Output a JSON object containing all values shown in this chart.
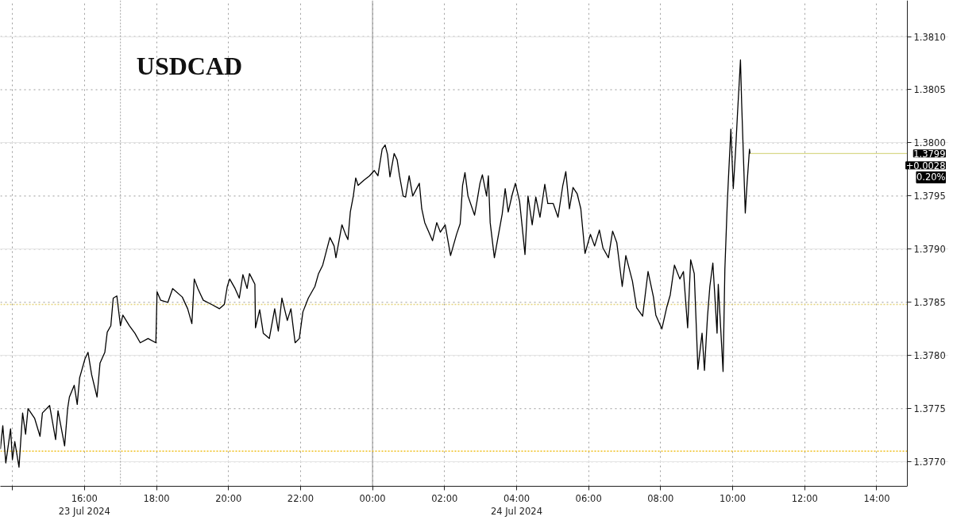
{
  "chart_data": {
    "type": "line",
    "title": "USDCAD",
    "x": [
      "2024-07-23T13:40",
      "2024-07-23T13:44",
      "2024-07-23T13:49",
      "2024-07-23T13:57",
      "2024-07-23T14:00",
      "2024-07-23T14:04",
      "2024-07-23T14:11",
      "2024-07-23T14:17",
      "2024-07-23T14:22",
      "2024-07-23T14:26",
      "2024-07-23T14:37",
      "2024-07-23T14:46",
      "2024-07-23T14:50",
      "2024-07-23T15:02",
      "2024-07-23T15:12",
      "2024-07-23T15:16",
      "2024-07-23T15:27",
      "2024-07-23T15:32",
      "2024-07-23T15:35",
      "2024-07-23T15:43",
      "2024-07-23T15:48",
      "2024-07-23T15:52",
      "2024-07-23T16:01",
      "2024-07-23T16:06",
      "2024-07-23T16:12",
      "2024-07-23T16:21",
      "2024-07-23T16:26",
      "2024-07-23T16:34",
      "2024-07-23T16:38",
      "2024-07-23T16:44",
      "2024-07-23T16:48",
      "2024-07-23T16:54",
      "2024-07-23T17:00",
      "2024-07-23T17:04",
      "2024-07-23T17:15",
      "2024-07-23T17:24",
      "2024-07-23T17:33",
      "2024-07-23T17:46",
      "2024-07-23T17:59",
      "2024-07-23T18:01",
      "2024-07-23T18:07",
      "2024-07-23T18:19",
      "2024-07-23T18:27",
      "2024-07-23T18:43",
      "2024-07-23T18:52",
      "2024-07-23T18:59",
      "2024-07-23T19:03",
      "2024-07-23T19:09",
      "2024-07-23T19:18",
      "2024-07-23T19:32",
      "2024-07-23T19:45",
      "2024-07-23T19:53",
      "2024-07-23T19:58",
      "2024-07-23T20:02",
      "2024-07-23T20:11",
      "2024-07-23T20:18",
      "2024-07-23T20:24",
      "2024-07-23T20:31",
      "2024-07-23T20:35",
      "2024-07-23T20:44",
      "2024-07-23T20:45",
      "2024-07-23T20:52",
      "2024-07-23T20:58",
      "2024-07-23T21:08",
      "2024-07-23T21:17",
      "2024-07-23T21:23",
      "2024-07-23T21:29",
      "2024-07-23T21:38",
      "2024-07-23T21:44",
      "2024-07-23T21:51",
      "2024-07-23T21:58",
      "2024-07-23T22:04",
      "2024-07-23T22:13",
      "2024-07-23T22:24",
      "2024-07-23T22:30",
      "2024-07-23T22:37",
      "2024-07-23T22:49",
      "2024-07-23T22:56",
      "2024-07-23T22:59",
      "2024-07-23T23:09",
      "2024-07-23T23:15",
      "2024-07-23T23:19",
      "2024-07-23T23:23",
      "2024-07-23T23:28",
      "2024-07-23T23:32",
      "2024-07-23T23:36",
      "2024-07-23T23:46",
      "2024-07-23T23:55",
      "2024-07-24T00:03",
      "2024-07-24T00:09",
      "2024-07-24T00:16",
      "2024-07-24T00:21",
      "2024-07-24T00:25",
      "2024-07-24T00:29",
      "2024-07-24T00:36",
      "2024-07-24T00:41",
      "2024-07-24T00:45",
      "2024-07-24T00:51",
      "2024-07-24T00:55",
      "2024-07-24T01:01",
      "2024-07-24T01:07",
      "2024-07-24T01:18",
      "2024-07-24T01:22",
      "2024-07-24T01:27",
      "2024-07-24T01:40",
      "2024-07-24T01:47",
      "2024-07-24T01:53",
      "2024-07-24T02:01",
      "2024-07-24T02:10",
      "2024-07-24T02:20",
      "2024-07-24T02:26",
      "2024-07-24T02:30",
      "2024-07-24T02:34",
      "2024-07-24T02:39",
      "2024-07-24T02:50",
      "2024-07-24T02:54",
      "2024-07-24T02:59",
      "2024-07-24T03:03",
      "2024-07-24T03:10",
      "2024-07-24T03:13",
      "2024-07-24T03:16",
      "2024-07-24T03:23",
      "2024-07-24T03:29",
      "2024-07-24T03:36",
      "2024-07-24T03:41",
      "2024-07-24T03:46",
      "2024-07-24T03:53",
      "2024-07-24T03:58",
      "2024-07-24T04:05",
      "2024-07-24T04:09",
      "2024-07-24T04:14",
      "2024-07-24T04:19",
      "2024-07-24T04:26",
      "2024-07-24T04:32",
      "2024-07-24T04:39",
      "2024-07-24T04:47",
      "2024-07-24T04:52",
      "2024-07-24T05:01",
      "2024-07-24T05:09",
      "2024-07-24T05:17",
      "2024-07-24T05:22",
      "2024-07-24T05:28",
      "2024-07-24T05:34",
      "2024-07-24T05:41",
      "2024-07-24T05:47",
      "2024-07-24T05:54",
      "2024-07-24T06:03",
      "2024-07-24T06:10",
      "2024-07-24T06:18",
      "2024-07-24T06:24",
      "2024-07-24T06:33",
      "2024-07-24T06:40",
      "2024-07-24T06:47",
      "2024-07-24T06:56",
      "2024-07-24T07:02",
      "2024-07-24T07:13",
      "2024-07-24T07:20",
      "2024-07-24T07:30",
      "2024-07-24T07:39",
      "2024-07-24T07:48",
      "2024-07-24T07:52",
      "2024-07-24T08:02",
      "2024-07-24T08:10",
      "2024-07-24T08:16",
      "2024-07-24T08:23",
      "2024-07-24T08:32",
      "2024-07-24T08:38",
      "2024-07-24T08:45",
      "2024-07-24T08:50",
      "2024-07-24T08:56",
      "2024-07-24T09:01",
      "2024-07-24T09:02",
      "2024-07-24T09:09",
      "2024-07-24T09:13",
      "2024-07-24T09:18",
      "2024-07-24T09:22",
      "2024-07-24T09:27",
      "2024-07-24T09:34",
      "2024-07-24T09:36",
      "2024-07-24T09:44",
      "2024-07-24T09:47",
      "2024-07-24T09:51",
      "2024-07-24T09:53",
      "2024-07-24T09:57",
      "2024-07-24T10:01",
      "2024-07-24T10:05",
      "2024-07-24T10:08",
      "2024-07-24T10:13",
      "2024-07-24T10:15",
      "2024-07-24T10:17",
      "2024-07-24T10:21",
      "2024-07-24T10:24",
      "2024-07-24T10:28",
      "2024-07-24T10:29"
    ],
    "series": [
      {
        "color": "#000000",
        "values": [
          1.37712,
          1.37734,
          1.37699,
          1.37731,
          1.37702,
          1.37719,
          1.37695,
          1.37746,
          1.37726,
          1.3775,
          1.37741,
          1.37724,
          1.37746,
          1.37753,
          1.37721,
          1.37748,
          1.37715,
          1.3775,
          1.37761,
          1.37772,
          1.37754,
          1.37779,
          1.37797,
          1.37803,
          1.37782,
          1.37761,
          1.37793,
          1.37803,
          1.37822,
          1.37828,
          1.37854,
          1.37856,
          1.37828,
          1.37838,
          1.37828,
          1.37821,
          1.37812,
          1.37816,
          1.37812,
          1.3786,
          1.37852,
          1.3785,
          1.37863,
          1.37855,
          1.37844,
          1.3783,
          1.37872,
          1.37863,
          1.37852,
          1.37848,
          1.37844,
          1.37848,
          1.37865,
          1.37872,
          1.37863,
          1.37854,
          1.37876,
          1.37863,
          1.37877,
          1.37867,
          1.37826,
          1.37843,
          1.37821,
          1.37816,
          1.37844,
          1.37823,
          1.37854,
          1.37833,
          1.37844,
          1.37812,
          1.37816,
          1.37841,
          1.37854,
          1.37865,
          1.37877,
          1.37885,
          1.37911,
          1.37903,
          1.37892,
          1.37923,
          1.37914,
          1.37909,
          1.37935,
          1.3795,
          1.37967,
          1.3796,
          1.37965,
          1.37969,
          1.37974,
          1.37969,
          1.37994,
          1.37998,
          1.37989,
          1.37968,
          1.3799,
          1.37984,
          1.37969,
          1.3795,
          1.37949,
          1.37969,
          1.3795,
          1.37962,
          1.37938,
          1.37925,
          1.37908,
          1.37925,
          1.37916,
          1.37923,
          1.37894,
          1.37914,
          1.37924,
          1.3796,
          1.37972,
          1.3795,
          1.37932,
          1.37945,
          1.37962,
          1.3797,
          1.3795,
          1.37969,
          1.37925,
          1.37892,
          1.37911,
          1.37933,
          1.37957,
          1.37935,
          1.37952,
          1.37962,
          1.37945,
          1.37923,
          1.37895,
          1.3795,
          1.37923,
          1.37949,
          1.3793,
          1.37961,
          1.37943,
          1.37943,
          1.3793,
          1.3796,
          1.37973,
          1.37938,
          1.37958,
          1.37952,
          1.37938,
          1.37896,
          1.37914,
          1.37903,
          1.37918,
          1.37901,
          1.37892,
          1.37917,
          1.37906,
          1.37865,
          1.37894,
          1.3787,
          1.37845,
          1.37837,
          1.37879,
          1.37855,
          1.37838,
          1.37825,
          1.37845,
          1.37857,
          1.37885,
          1.37872,
          1.37879,
          1.37826,
          1.3789,
          1.37877,
          1.37804,
          1.37787,
          1.37821,
          1.37786,
          1.37836,
          1.37865,
          1.37887,
          1.37821,
          1.37867,
          1.37785,
          1.37881,
          1.37943,
          1.37967,
          1.38013,
          1.37957,
          1.37994,
          1.38027,
          1.38078,
          1.38037,
          1.38003,
          1.37934,
          1.37962,
          1.37994,
          1.3799
        ]
      }
    ],
    "xlim": [
      "2024-07-23T13:40",
      "2024-07-24T14:51"
    ],
    "ylim": [
      1.37677,
      1.38134
    ],
    "xticks": [
      {
        "value": "2024-07-23T14:00",
        "label": null
      },
      {
        "value": "2024-07-23T16:00",
        "label": "16:00\n23 Jul 2024"
      },
      {
        "value": "2024-07-23T18:00",
        "label": "18:00"
      },
      {
        "value": "2024-07-23T20:00",
        "label": "20:00"
      },
      {
        "value": "2024-07-23T22:00",
        "label": "22:00"
      },
      {
        "value": "2024-07-24T00:00",
        "label": "00:00"
      },
      {
        "value": "2024-07-24T02:00",
        "label": "02:00"
      },
      {
        "value": "2024-07-24T04:00",
        "label": "04:00\n24 Jul 2024"
      },
      {
        "value": "2024-07-24T06:00",
        "label": "06:00"
      },
      {
        "value": "2024-07-24T08:00",
        "label": "08:00"
      },
      {
        "value": "2024-07-24T10:00",
        "label": "10:00"
      },
      {
        "value": "2024-07-24T12:00",
        "label": "12:00"
      },
      {
        "value": "2024-07-24T14:00",
        "label": "14:00"
      }
    ],
    "yticks": [
      {
        "value": 1.377,
        "label": "1.3770"
      },
      {
        "value": 1.3775,
        "label": "1.3775"
      },
      {
        "value": 1.378,
        "label": "1.3780"
      },
      {
        "value": 1.3785,
        "label": "1.3785"
      },
      {
        "value": 1.379,
        "label": "1.3790"
      },
      {
        "value": 1.3795,
        "label": "1.3795"
      },
      {
        "value": 1.38,
        "label": "1.3800"
      },
      {
        "value": 1.3805,
        "label": "1.3805"
      },
      {
        "value": 1.381,
        "label": "1.3810"
      }
    ],
    "grid": true,
    "ref_lines": [
      {
        "axis": "y",
        "value": 1.37848,
        "color": "#e6d680",
        "line_style": "dotted"
      },
      {
        "axis": "y",
        "value": 1.3771,
        "color": "#f0c020",
        "line_style": "dotted"
      },
      {
        "axis": "y",
        "value": 1.3799,
        "label": "1.3799",
        "color": "#d9d98a",
        "line_style": "solid"
      },
      {
        "axis": "x",
        "value": "2024-07-24T00:00",
        "color": "#8c8c8c",
        "line_style": "solid"
      },
      {
        "axis": "x",
        "value": "2024-07-23T17:00",
        "color": "#a0a0a0",
        "line_style": "dotted"
      }
    ],
    "annotations": [
      "+0.0028",
      "0.20%"
    ]
  }
}
